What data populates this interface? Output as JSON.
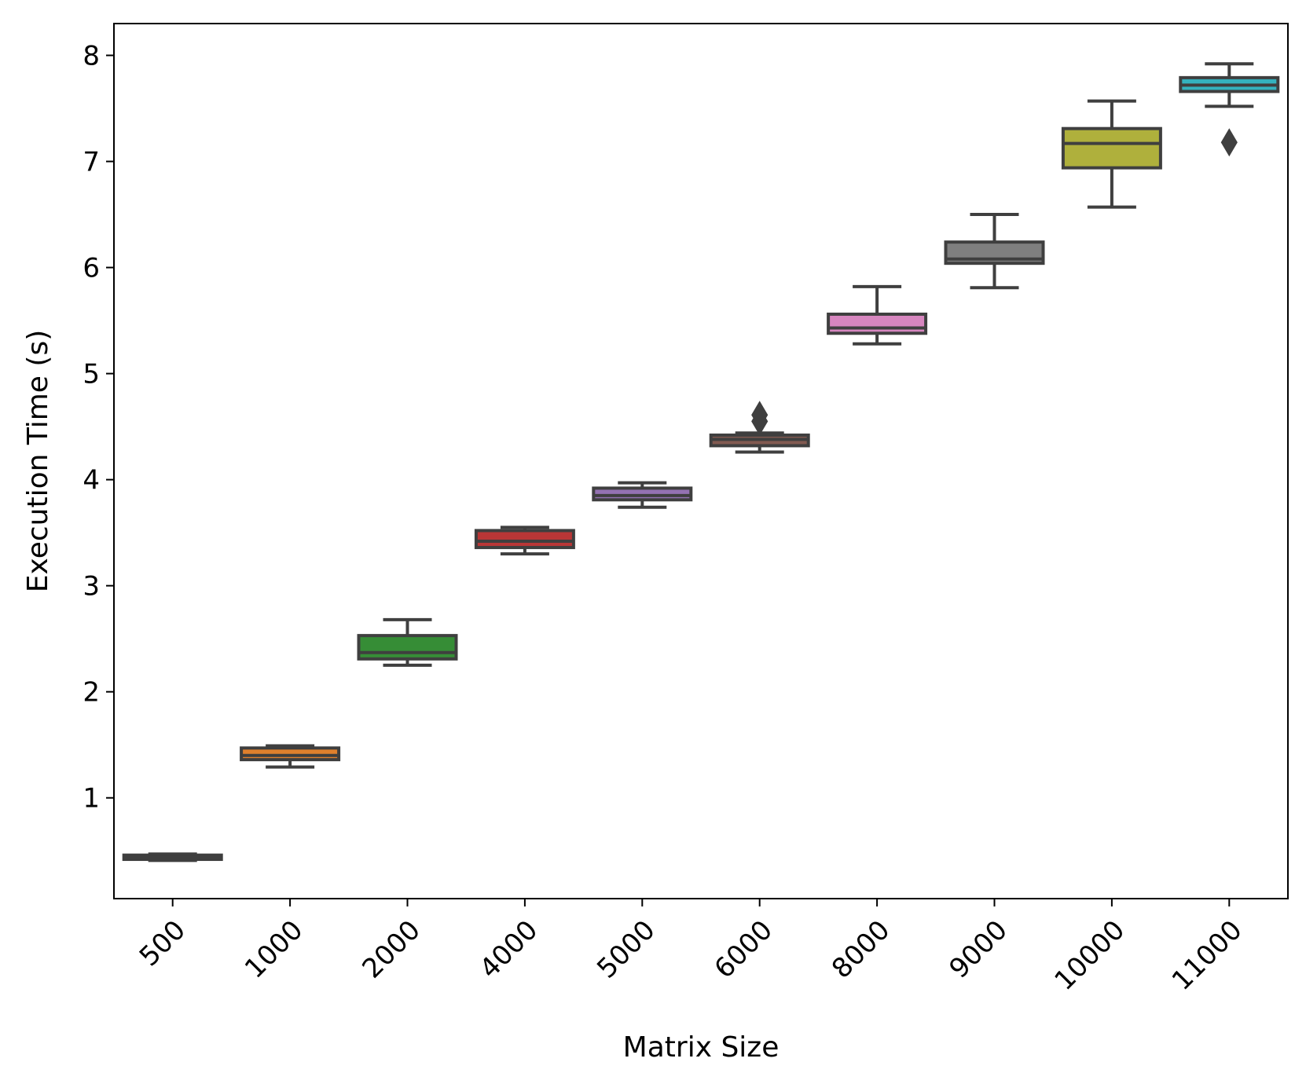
{
  "chart_data": {
    "type": "box",
    "xlabel": "Matrix Size",
    "ylabel": "Execution Time (s)",
    "ylim": [
      0.05,
      8.3
    ],
    "yticks": [
      1,
      2,
      3,
      4,
      5,
      6,
      7,
      8
    ],
    "grid": false,
    "categories": [
      "500",
      "1000",
      "2000",
      "4000",
      "5000",
      "6000",
      "8000",
      "9000",
      "10000",
      "11000"
    ],
    "boxes": [
      {
        "category": "500",
        "whisker_low": 0.41,
        "q1": 0.42,
        "median": 0.44,
        "q3": 0.46,
        "whisker_high": 0.47,
        "outliers": [],
        "color": "#1f77b4"
      },
      {
        "category": "1000",
        "whisker_low": 1.29,
        "q1": 1.36,
        "median": 1.4,
        "q3": 1.47,
        "whisker_high": 1.49,
        "outliers": [],
        "color": "#ff7f0e"
      },
      {
        "category": "2000",
        "whisker_low": 2.25,
        "q1": 2.31,
        "median": 2.37,
        "q3": 2.53,
        "whisker_high": 2.68,
        "outliers": [],
        "color": "#2ca02c"
      },
      {
        "category": "4000",
        "whisker_low": 3.3,
        "q1": 3.36,
        "median": 3.42,
        "q3": 3.52,
        "whisker_high": 3.55,
        "outliers": [],
        "color": "#d62728"
      },
      {
        "category": "5000",
        "whisker_low": 3.74,
        "q1": 3.81,
        "median": 3.85,
        "q3": 3.92,
        "whisker_high": 3.97,
        "outliers": [],
        "color": "#9467bd"
      },
      {
        "category": "6000",
        "whisker_low": 4.26,
        "q1": 4.32,
        "median": 4.38,
        "q3": 4.42,
        "whisker_high": 4.44,
        "outliers": [
          4.55,
          4.61
        ],
        "color": "#8c564b"
      },
      {
        "category": "8000",
        "whisker_low": 5.28,
        "q1": 5.38,
        "median": 5.43,
        "q3": 5.56,
        "whisker_high": 5.82,
        "outliers": [],
        "color": "#e377c2"
      },
      {
        "category": "9000",
        "whisker_low": 5.81,
        "q1": 6.04,
        "median": 6.08,
        "q3": 6.24,
        "whisker_high": 6.5,
        "outliers": [],
        "color": "#7f7f7f"
      },
      {
        "category": "10000",
        "whisker_low": 6.57,
        "q1": 6.94,
        "median": 7.17,
        "q3": 7.31,
        "whisker_high": 7.57,
        "outliers": [],
        "color": "#bcbd22"
      },
      {
        "category": "11000",
        "whisker_low": 7.52,
        "q1": 7.66,
        "median": 7.72,
        "q3": 7.79,
        "whisker_high": 7.92,
        "outliers": [
          7.18
        ],
        "color": "#17becf"
      }
    ]
  }
}
